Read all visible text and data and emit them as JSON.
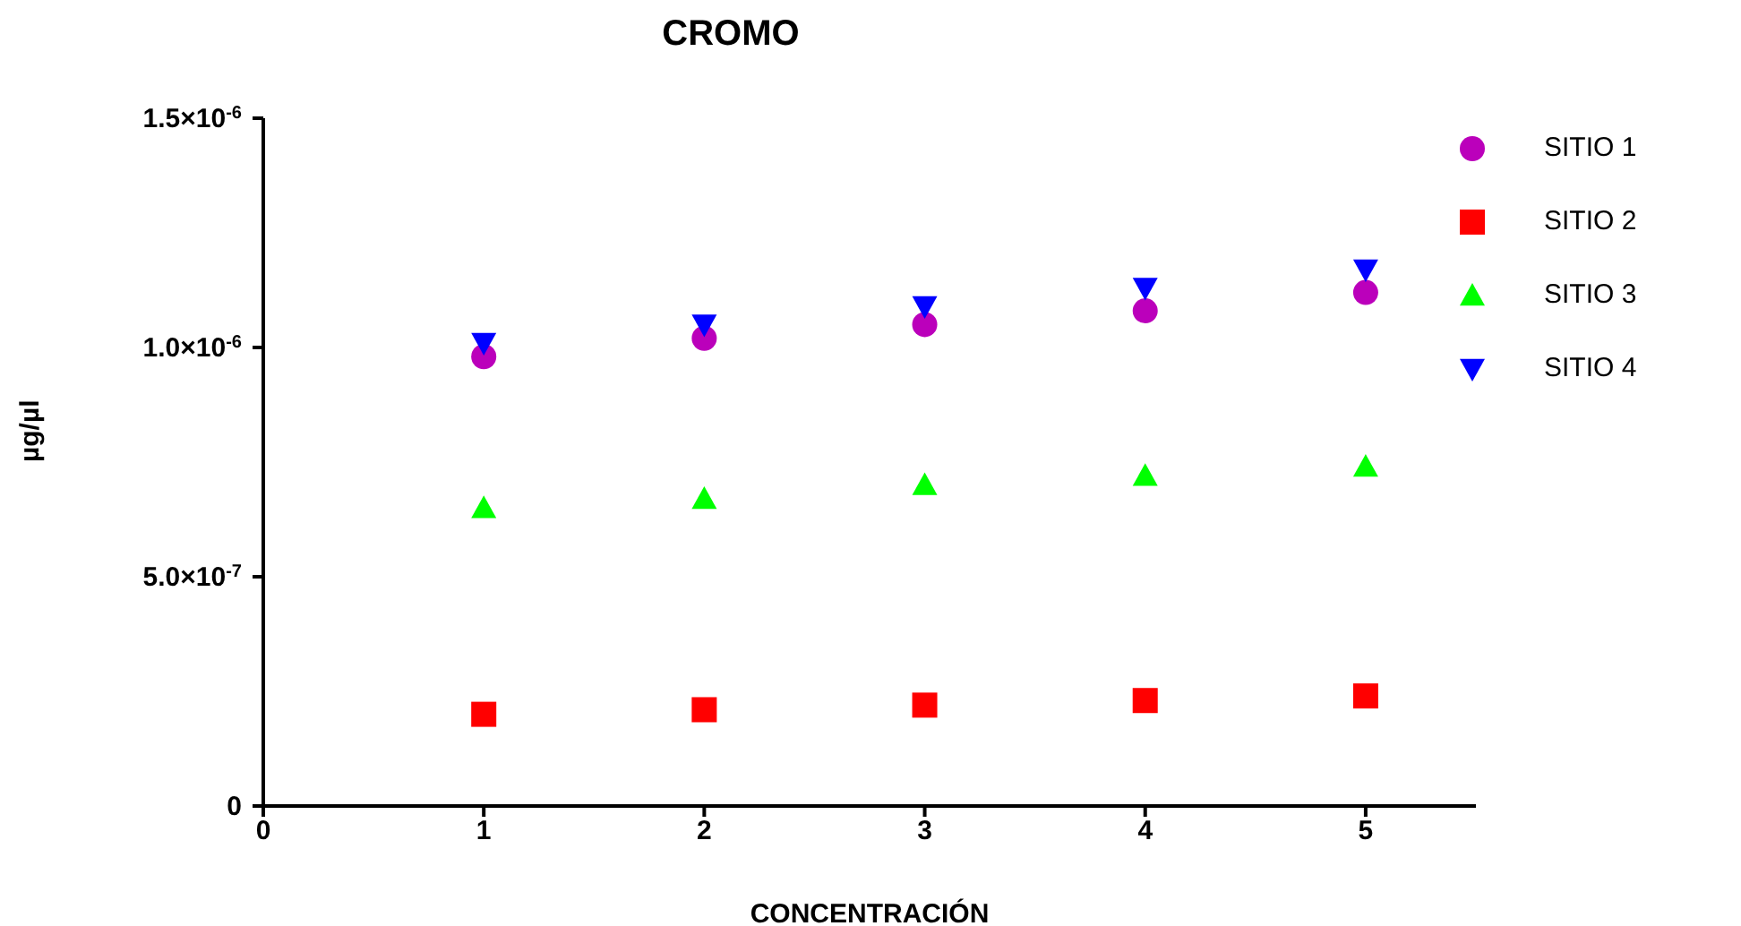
{
  "chart_data": {
    "type": "scatter",
    "title": "CROMO",
    "xlabel": "CONCENTRACIÓN",
    "ylabel": "µg/µl",
    "x": [
      1,
      2,
      3,
      4,
      5
    ],
    "series": [
      {
        "name": "SITIO 1",
        "color": "#bb00bb",
        "marker": "circle",
        "values": [
          9.8e-07,
          1.02e-06,
          1.05e-06,
          1.08e-06,
          1.12e-06
        ]
      },
      {
        "name": "SITIO 2",
        "color": "#ff0000",
        "marker": "square",
        "values": [
          2e-07,
          2.1e-07,
          2.2e-07,
          2.3e-07,
          2.4e-07
        ]
      },
      {
        "name": "SITIO 3",
        "color": "#00ff00",
        "marker": "triangle",
        "values": [
          6.5e-07,
          6.7e-07,
          7e-07,
          7.2e-07,
          7.4e-07
        ]
      },
      {
        "name": "SITIO 4",
        "color": "#0000ff",
        "marker": "triangle-down",
        "values": [
          1.01e-06,
          1.05e-06,
          1.09e-06,
          1.13e-06,
          1.17e-06
        ]
      }
    ],
    "xlim": [
      0,
      5.5
    ],
    "xticks": [
      0,
      1,
      2,
      3,
      4,
      5
    ],
    "ylim": [
      0,
      1.5e-06
    ],
    "yticks": [
      0,
      {
        "value": 5e-07,
        "label": "5.0×10$^{-7}$"
      },
      {
        "value": 1e-06,
        "label": "1.0×10$^{-6}$"
      },
      {
        "value": 1.5e-06,
        "label": "1.5×10$^{-6}$"
      }
    ],
    "grid": false,
    "legend": "right"
  }
}
